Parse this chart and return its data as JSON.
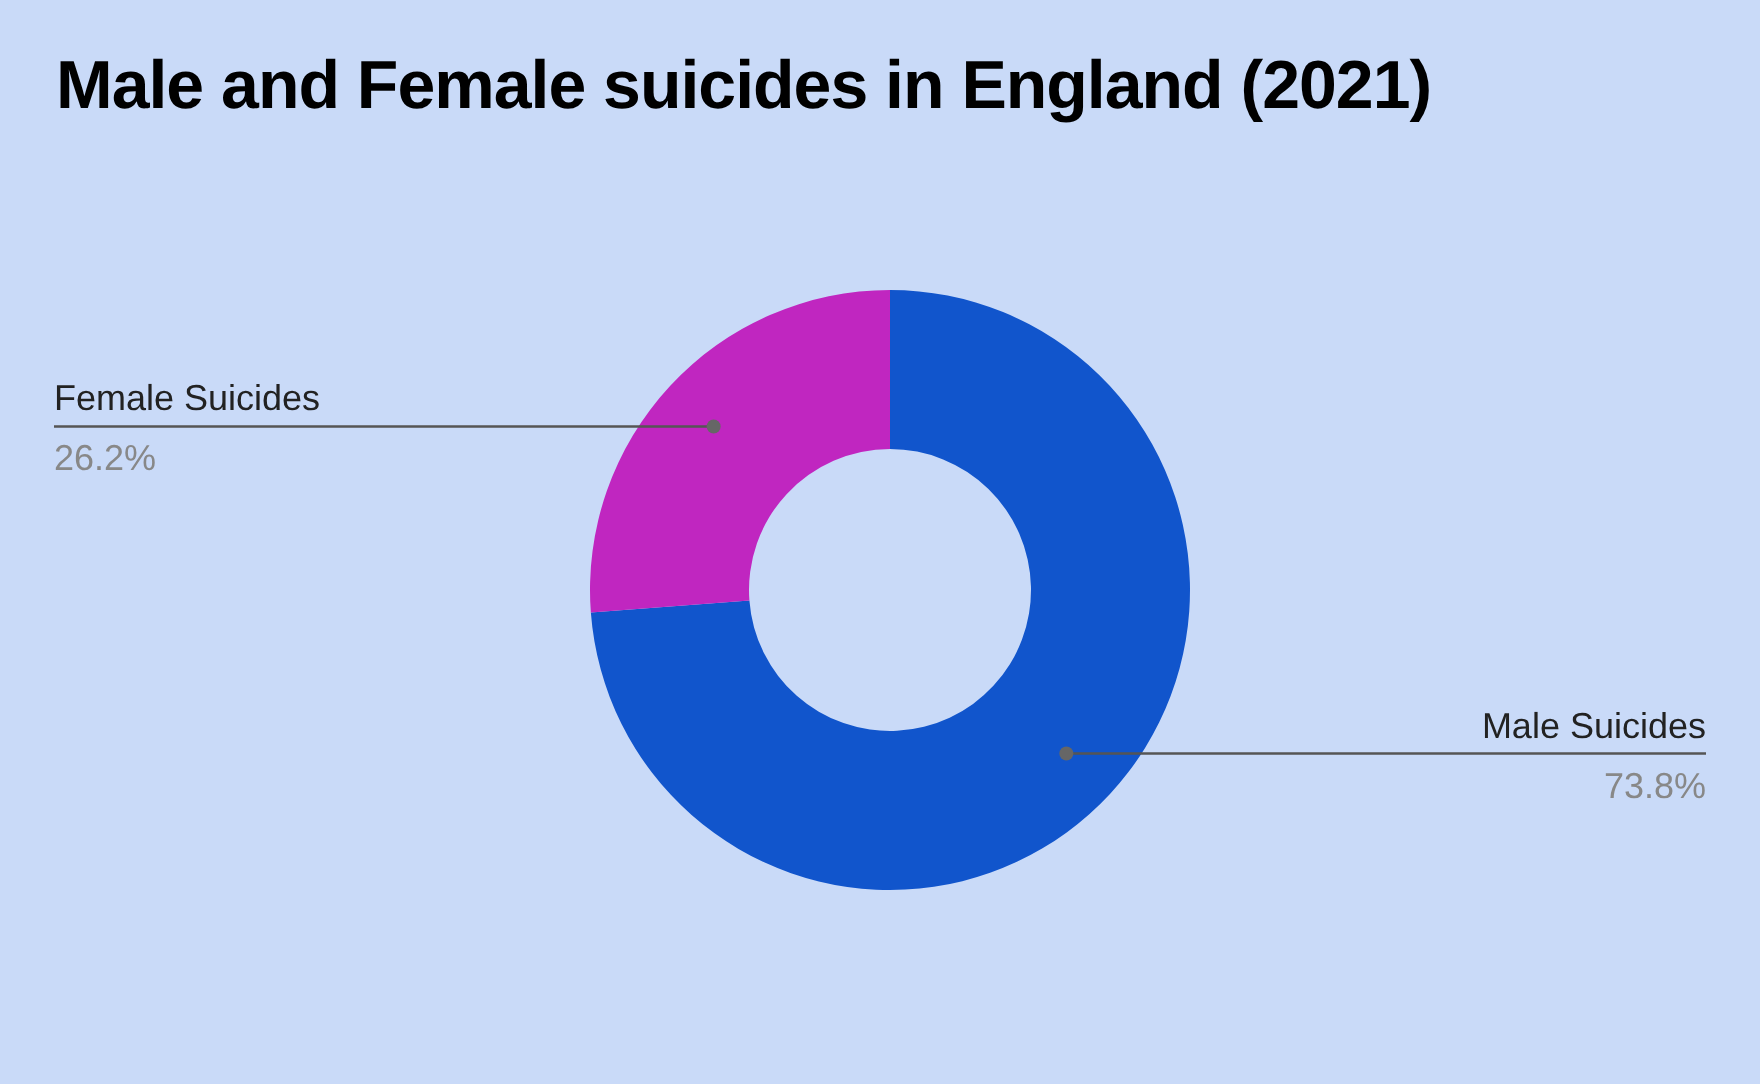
{
  "chart_data": {
    "type": "donut",
    "title": "Male and Female suicides in England (2021)",
    "categories": [
      "Male Suicides",
      "Female Suicides"
    ],
    "values": [
      73.8,
      26.2
    ],
    "colors": [
      "#1155cc",
      "#c026c0"
    ],
    "value_labels": [
      "73.8%",
      "26.2%"
    ]
  }
}
